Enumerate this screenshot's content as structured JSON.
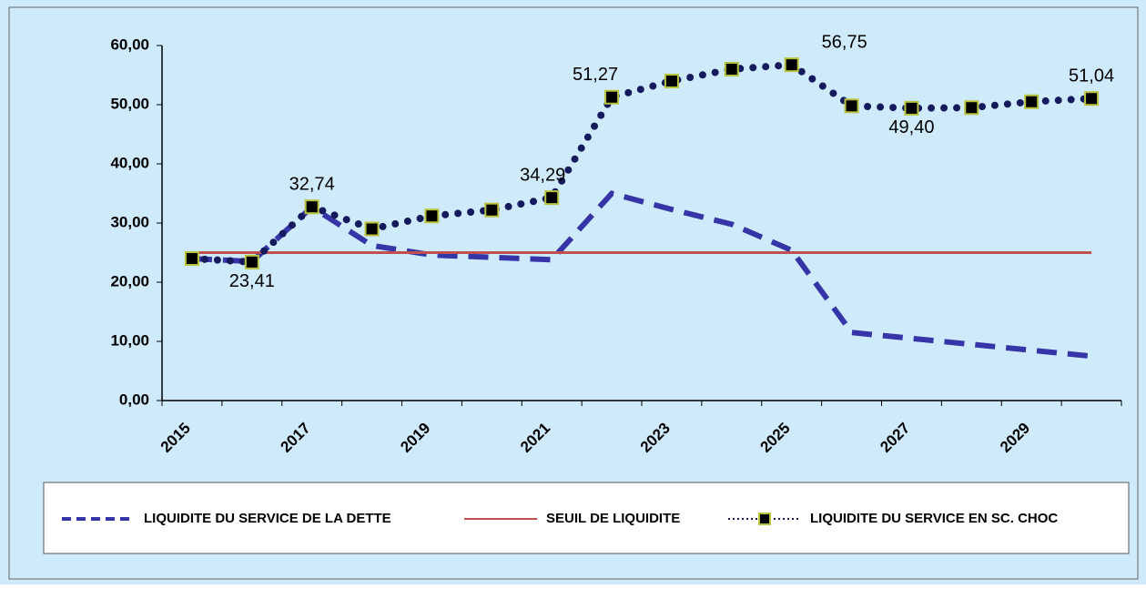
{
  "chart_data": {
    "type": "line",
    "categories": [
      "2015",
      null,
      "2017",
      null,
      "2019",
      null,
      "2021",
      null,
      "2023",
      null,
      "2025",
      null,
      "2027",
      null,
      "2029",
      null
    ],
    "ylim": [
      0,
      60
    ],
    "yticks": [
      {
        "value": 0,
        "label": "0,00"
      },
      {
        "value": 10,
        "label": "10,00"
      },
      {
        "value": 20,
        "label": "20,00"
      },
      {
        "value": 30,
        "label": "30,00"
      },
      {
        "value": 40,
        "label": "40,00"
      },
      {
        "value": 50,
        "label": "50,00"
      },
      {
        "value": 60,
        "label": "60,00"
      }
    ],
    "series": [
      {
        "name": "LIQUIDITE DU SERVICE DE LA DETTE",
        "color": "#3535a8",
        "style": "dashed",
        "values": [
          24,
          23.5,
          32.7,
          26.2,
          24.6,
          24.2,
          23.8,
          35,
          32.3,
          29.8,
          25.4,
          11.5,
          10.5,
          9.5,
          8.5,
          7.5
        ]
      },
      {
        "name": "SEUIL DE LIQUIDITE",
        "color": "#c0504d",
        "style": "solid",
        "values": [
          25,
          25,
          25,
          25,
          25,
          25,
          25,
          25,
          25,
          25,
          25,
          25,
          25,
          25,
          25,
          25
        ]
      },
      {
        "name": "LIQUIDITE DU SERVICE  EN SC. CHOC",
        "color": "#141a5c",
        "style": "dotted",
        "marker": "square",
        "values": [
          24,
          23.41,
          32.74,
          29,
          31.2,
          32.2,
          34.29,
          51.27,
          54,
          56,
          56.75,
          49.8,
          49.4,
          49.5,
          50.5,
          51.04
        ],
        "value_labels": [
          null,
          "23,41",
          "32,74",
          null,
          null,
          null,
          "34,29",
          "51,27",
          null,
          null,
          "56,75",
          null,
          "49,40",
          null,
          null,
          "51,04"
        ]
      }
    ]
  }
}
